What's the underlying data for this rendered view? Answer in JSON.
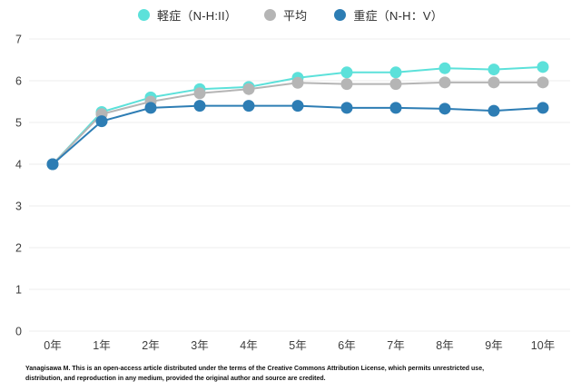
{
  "chart_data": {
    "type": "line",
    "title": "",
    "xlabel": "",
    "ylabel": "",
    "categories": [
      "0年",
      "1年",
      "2年",
      "3年",
      "4年",
      "5年",
      "6年",
      "7年",
      "8年",
      "9年",
      "10年"
    ],
    "series": [
      {
        "name": "軽症（N-H:II）",
        "color": "#5ce1da",
        "values": [
          4.0,
          5.25,
          5.6,
          5.8,
          5.85,
          6.07,
          6.2,
          6.2,
          6.3,
          6.27,
          6.33
        ]
      },
      {
        "name": "平均",
        "color": "#b5b5b5",
        "values": [
          4.0,
          5.2,
          5.5,
          5.7,
          5.8,
          5.95,
          5.92,
          5.92,
          5.96,
          5.96,
          5.96
        ]
      },
      {
        "name": "重症（N-H：V）",
        "color": "#2d7db4",
        "values": [
          4.0,
          5.03,
          5.35,
          5.4,
          5.4,
          5.4,
          5.35,
          5.35,
          5.33,
          5.28,
          5.35
        ]
      }
    ],
    "ylim": [
      0,
      7
    ],
    "yticks": [
      0,
      1,
      2,
      3,
      4,
      5,
      6,
      7
    ],
    "grid": true,
    "legend_position": "top"
  },
  "colors": {
    "grid": "#ececec",
    "axis_text": "#3d3d3d",
    "background": "#ffffff"
  },
  "footer": {
    "line1": "Yanagisawa M. This is an open-access article distributed under the terms of the Creative Commons Attribution License, which permits unrestricted use,",
    "line2": "distribution, and reproduction in any medium, provided the original author and source are credited."
  }
}
